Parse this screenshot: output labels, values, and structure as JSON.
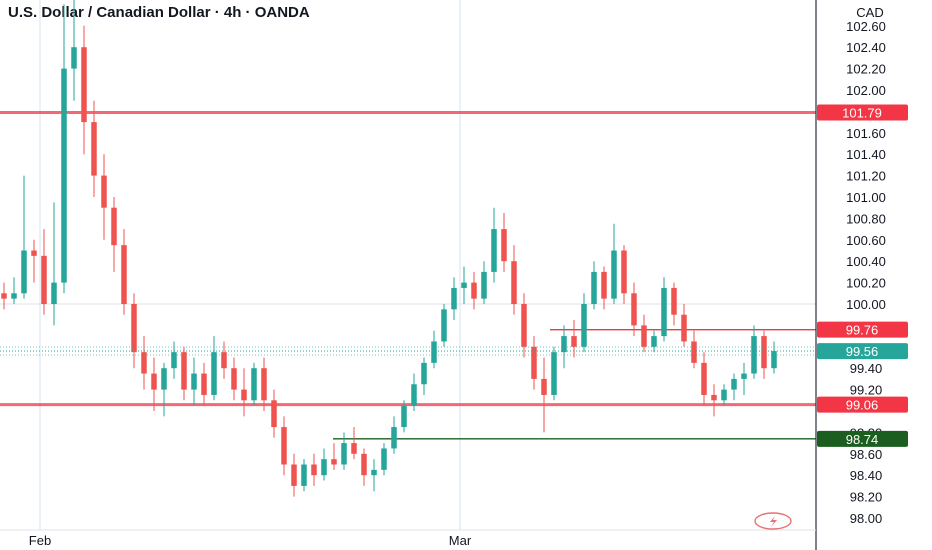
{
  "header": {
    "title": "U.S. Dollar / Canadian Dollar · 4h · OANDA",
    "currency": "CAD"
  },
  "colors": {
    "up": "#26a69a",
    "down": "#ef5350",
    "resistance": "#f23645",
    "support": "#1b5e20",
    "price_badge": "#26a69a",
    "grid": "#e0e3eb"
  },
  "chart_data": {
    "type": "candlestick",
    "title": "U.S. Dollar / Canadian Dollar · 4h · OANDA",
    "ylabel": "CAD",
    "ylim": [
      97.9,
      103.1
    ],
    "y_ticks": [
      "102.60",
      "102.40",
      "102.20",
      "102.00",
      "101.60",
      "101.40",
      "101.20",
      "101.00",
      "100.80",
      "100.60",
      "100.40",
      "100.20",
      "100.00",
      "99.40",
      "99.20",
      "98.80",
      "98.60",
      "98.40",
      "98.20",
      "98.00"
    ],
    "x_ticks": [
      "Feb",
      "Mar"
    ],
    "levels": [
      {
        "label": "101.79",
        "value": 101.79,
        "kind": "resistance"
      },
      {
        "label": "99.76",
        "value": 99.76,
        "kind": "resistance"
      },
      {
        "label": "99.06",
        "value": 99.06,
        "kind": "resistance"
      },
      {
        "label": "98.74",
        "value": 98.74,
        "kind": "support"
      }
    ],
    "last_price": {
      "label": "99.56",
      "value": 99.56
    },
    "series": [
      {
        "values": [
          [
            100.1,
            100.2,
            99.95,
            100.05
          ],
          [
            100.05,
            100.25,
            100.0,
            100.1
          ],
          [
            100.1,
            101.2,
            100.05,
            100.5
          ],
          [
            100.5,
            100.6,
            100.2,
            100.45
          ],
          [
            100.45,
            100.7,
            99.9,
            100.0
          ],
          [
            100.0,
            100.95,
            99.8,
            100.2
          ],
          [
            100.2,
            102.8,
            100.1,
            102.2
          ],
          [
            102.2,
            103.0,
            101.9,
            102.4
          ],
          [
            102.4,
            102.6,
            101.4,
            101.7
          ],
          [
            101.7,
            101.9,
            101.0,
            101.2
          ],
          [
            101.2,
            101.4,
            100.6,
            100.9
          ],
          [
            100.9,
            101.0,
            100.3,
            100.55
          ],
          [
            100.55,
            100.7,
            99.9,
            100.0
          ],
          [
            100.0,
            100.1,
            99.4,
            99.55
          ],
          [
            99.55,
            99.7,
            99.2,
            99.35
          ],
          [
            99.35,
            99.5,
            99.0,
            99.2
          ],
          [
            99.2,
            99.45,
            98.95,
            99.4
          ],
          [
            99.4,
            99.65,
            99.3,
            99.55
          ],
          [
            99.55,
            99.6,
            99.1,
            99.2
          ],
          [
            99.2,
            99.5,
            99.05,
            99.35
          ],
          [
            99.35,
            99.45,
            99.05,
            99.15
          ],
          [
            99.15,
            99.7,
            99.1,
            99.55
          ],
          [
            99.55,
            99.65,
            99.3,
            99.4
          ],
          [
            99.4,
            99.5,
            99.1,
            99.2
          ],
          [
            99.2,
            99.4,
            98.95,
            99.1
          ],
          [
            99.1,
            99.45,
            99.05,
            99.4
          ],
          [
            99.4,
            99.5,
            99.0,
            99.1
          ],
          [
            99.1,
            99.2,
            98.75,
            98.85
          ],
          [
            98.85,
            98.95,
            98.4,
            98.5
          ],
          [
            98.5,
            98.6,
            98.2,
            98.3
          ],
          [
            98.3,
            98.55,
            98.25,
            98.5
          ],
          [
            98.5,
            98.6,
            98.3,
            98.4
          ],
          [
            98.4,
            98.65,
            98.35,
            98.55
          ],
          [
            98.55,
            98.7,
            98.45,
            98.5
          ],
          [
            98.5,
            98.8,
            98.45,
            98.7
          ],
          [
            98.7,
            98.85,
            98.55,
            98.6
          ],
          [
            98.6,
            98.65,
            98.3,
            98.4
          ],
          [
            98.4,
            98.55,
            98.25,
            98.45
          ],
          [
            98.45,
            98.7,
            98.4,
            98.65
          ],
          [
            98.65,
            98.95,
            98.6,
            98.85
          ],
          [
            98.85,
            99.1,
            98.8,
            99.05
          ],
          [
            99.05,
            99.35,
            99.0,
            99.25
          ],
          [
            99.25,
            99.5,
            99.15,
            99.45
          ],
          [
            99.45,
            99.75,
            99.4,
            99.65
          ],
          [
            99.65,
            100.0,
            99.6,
            99.95
          ],
          [
            99.95,
            100.25,
            99.85,
            100.15
          ],
          [
            100.15,
            100.35,
            100.0,
            100.2
          ],
          [
            100.2,
            100.3,
            99.95,
            100.05
          ],
          [
            100.05,
            100.4,
            100.0,
            100.3
          ],
          [
            100.3,
            100.9,
            100.2,
            100.7
          ],
          [
            100.7,
            100.85,
            100.3,
            100.4
          ],
          [
            100.4,
            100.55,
            99.9,
            100.0
          ],
          [
            100.0,
            100.1,
            99.5,
            99.6
          ],
          [
            99.6,
            99.7,
            99.2,
            99.3
          ],
          [
            99.3,
            99.5,
            98.8,
            99.15
          ],
          [
            99.15,
            99.6,
            99.1,
            99.55
          ],
          [
            99.55,
            99.8,
            99.4,
            99.7
          ],
          [
            99.7,
            99.85,
            99.5,
            99.6
          ],
          [
            99.6,
            100.1,
            99.55,
            100.0
          ],
          [
            100.0,
            100.4,
            99.95,
            100.3
          ],
          [
            100.3,
            100.35,
            99.95,
            100.05
          ],
          [
            100.05,
            100.75,
            100.0,
            100.5
          ],
          [
            100.5,
            100.55,
            100.0,
            100.1
          ],
          [
            100.1,
            100.2,
            99.7,
            99.8
          ],
          [
            99.8,
            99.9,
            99.55,
            99.6
          ],
          [
            99.6,
            99.75,
            99.55,
            99.7
          ],
          [
            99.7,
            100.25,
            99.65,
            100.15
          ],
          [
            100.15,
            100.2,
            99.8,
            99.9
          ],
          [
            99.9,
            100.0,
            99.6,
            99.65
          ],
          [
            99.65,
            99.75,
            99.4,
            99.45
          ],
          [
            99.45,
            99.55,
            99.05,
            99.15
          ],
          [
            99.15,
            99.25,
            98.95,
            99.1
          ],
          [
            99.1,
            99.25,
            99.05,
            99.2
          ],
          [
            99.2,
            99.35,
            99.1,
            99.3
          ],
          [
            99.3,
            99.45,
            99.15,
            99.35
          ],
          [
            99.35,
            99.8,
            99.3,
            99.7
          ],
          [
            99.7,
            99.75,
            99.3,
            99.4
          ],
          [
            99.4,
            99.65,
            99.35,
            99.56
          ]
        ]
      }
    ]
  }
}
